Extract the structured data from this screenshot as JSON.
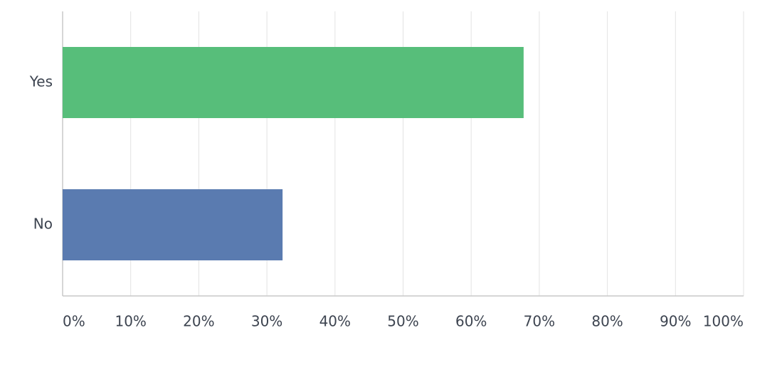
{
  "chart_data": {
    "type": "bar",
    "orientation": "horizontal",
    "categories": [
      "Yes",
      "No"
    ],
    "values": [
      67.7,
      32.3
    ],
    "colors": [
      "#57be7a",
      "#5a7bb0"
    ],
    "xlim": [
      0,
      100
    ],
    "xticks": [
      {
        "value": 0,
        "label": "0%"
      },
      {
        "value": 10,
        "label": "10%"
      },
      {
        "value": 20,
        "label": "20%"
      },
      {
        "value": 30,
        "label": "30%"
      },
      {
        "value": 40,
        "label": "40%"
      },
      {
        "value": 50,
        "label": "50%"
      },
      {
        "value": 60,
        "label": "60%"
      },
      {
        "value": 70,
        "label": "70%"
      },
      {
        "value": 80,
        "label": "80%"
      },
      {
        "value": 90,
        "label": "90%"
      },
      {
        "value": 100,
        "label": "100%"
      }
    ],
    "grid": true
  }
}
